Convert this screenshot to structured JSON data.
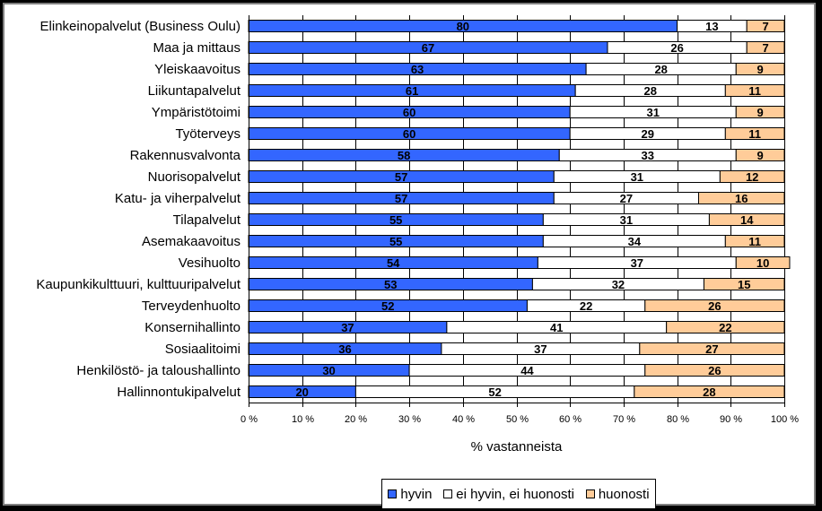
{
  "chart_data": {
    "type": "bar",
    "orientation": "horizontal",
    "stacked": "percent",
    "categories": [
      "Elinkeinopalvelut (Business Oulu)",
      "Maa ja mittaus",
      "Yleiskaavoitus",
      "Liikuntapalvelut",
      "Ympäristötoimi",
      "Työterveys",
      "Rakennusvalvonta",
      "Nuorisopalvelut",
      "Katu- ja viherpalvelut",
      "Tilapalvelut",
      "Asemakaavoitus",
      "Vesihuolto",
      "Kaupunkikulttuuri, kulttuuripalvelut",
      "Terveydenhuolto",
      "Konsernihallinto",
      "Sosiaalitoimi",
      "Henkilöstö- ja taloushallinto",
      "Hallinnontukipalvelut"
    ],
    "series": [
      {
        "name": "hyvin",
        "color": "#3366ff",
        "values": [
          80,
          67,
          63,
          61,
          60,
          60,
          58,
          57,
          57,
          55,
          55,
          54,
          53,
          52,
          37,
          36,
          30,
          20
        ]
      },
      {
        "name": "ei hyvin, ei huonosti",
        "color": "#ffffff",
        "values": [
          13,
          26,
          28,
          28,
          31,
          29,
          33,
          31,
          27,
          31,
          34,
          37,
          32,
          22,
          41,
          37,
          44,
          52
        ]
      },
      {
        "name": "huonosti",
        "color": "#ffcc99",
        "values": [
          7,
          7,
          9,
          11,
          9,
          11,
          9,
          12,
          16,
          14,
          11,
          10,
          15,
          26,
          22,
          27,
          26,
          28
        ]
      }
    ],
    "x_ticks": [
      "0 %",
      "10 %",
      "20 %",
      "30 %",
      "40 %",
      "50 %",
      "60 %",
      "70 %",
      "80 %",
      "90 %",
      "100 %"
    ],
    "xlabel": "% vastanneista",
    "xlim": [
      0,
      100
    ],
    "grid": true,
    "legend_position": "bottom"
  }
}
